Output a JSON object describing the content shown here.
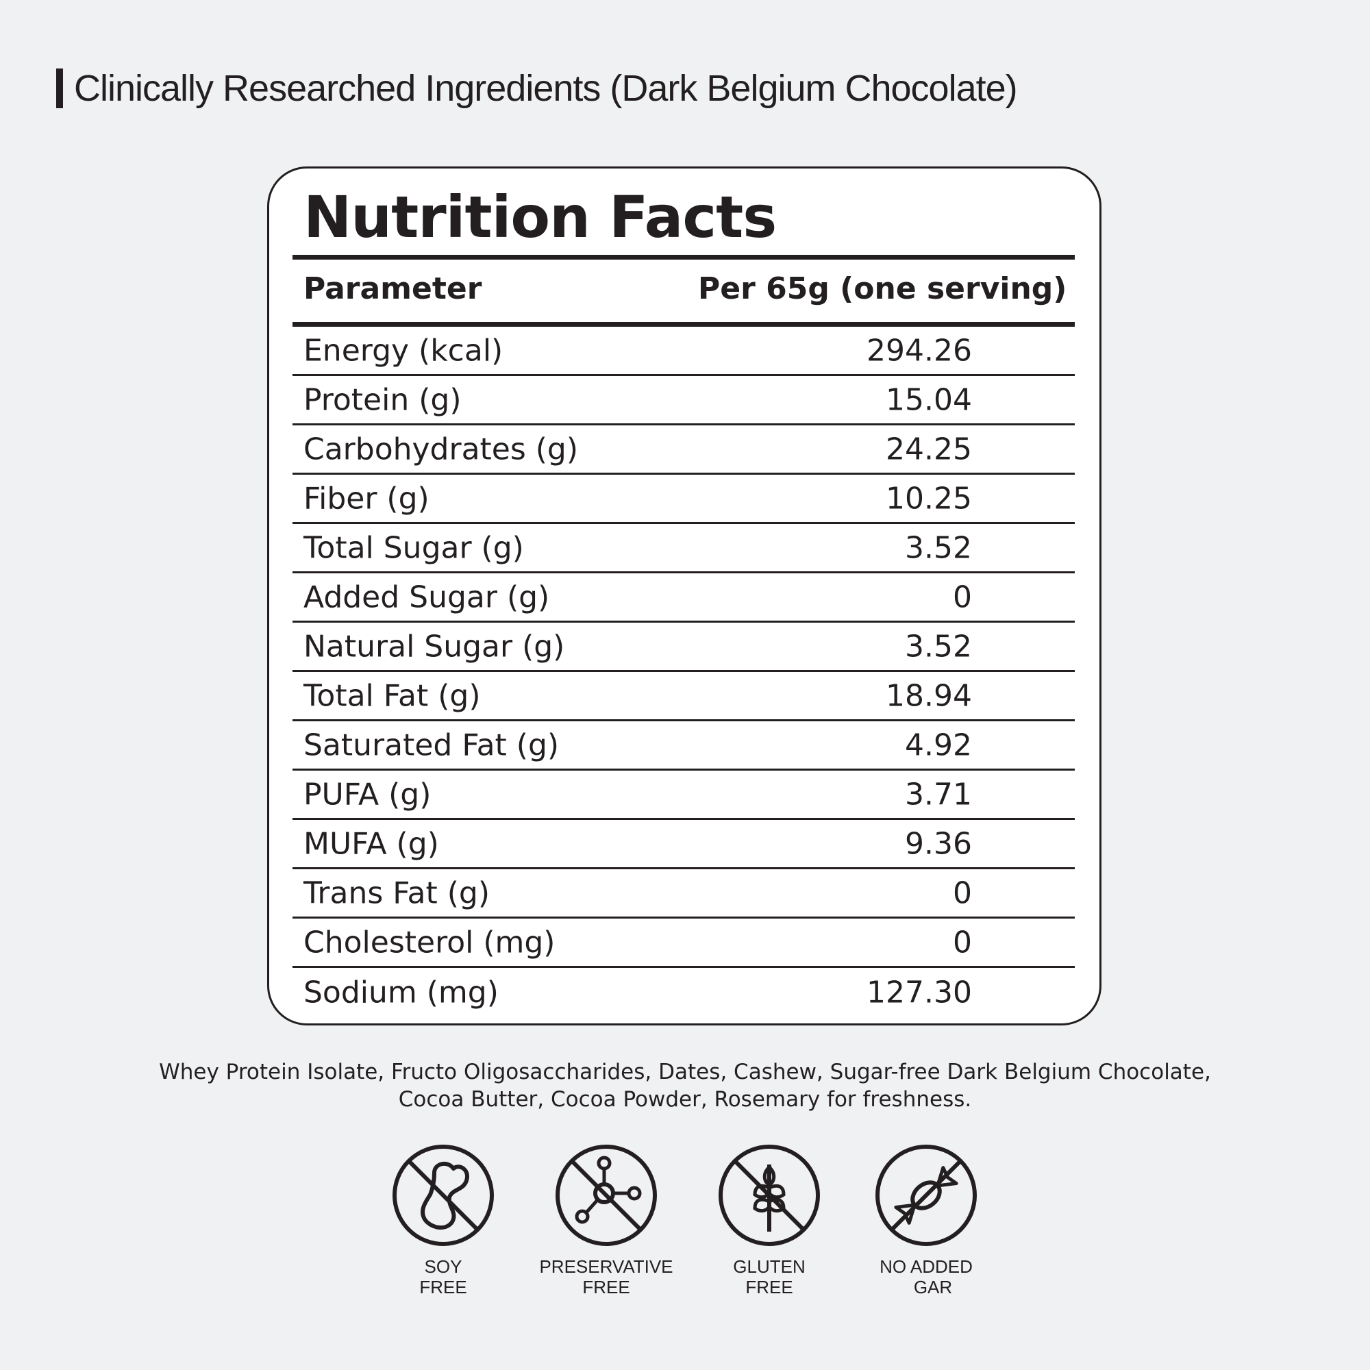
{
  "heading": "Clinically Researched Ingredients (Dark Belgium Chocolate)",
  "card": {
    "title": "Nutrition Facts",
    "col_param": "Parameter",
    "col_value": "Per 65g (one serving)",
    "rows": [
      {
        "param": "Energy (kcal)",
        "value": "294.26"
      },
      {
        "param": "Protein (g)",
        "value": "15.04"
      },
      {
        "param": "Carbohydrates (g)",
        "value": "24.25"
      },
      {
        "param": "Fiber (g)",
        "value": "10.25"
      },
      {
        "param": "Total Sugar (g)",
        "value": "3.52"
      },
      {
        "param": "Added Sugar (g)",
        "value": "0"
      },
      {
        "param": "Natural Sugar (g)",
        "value": "3.52"
      },
      {
        "param": "Total Fat (g)",
        "value": "18.94"
      },
      {
        "param": "Saturated Fat (g)",
        "value": "4.92"
      },
      {
        "param": "PUFA (g)",
        "value": "3.71"
      },
      {
        "param": "MUFA (g)",
        "value": "9.36"
      },
      {
        "param": "Trans Fat (g)",
        "value": "0"
      },
      {
        "param": "Cholesterol (mg)",
        "value": "0"
      },
      {
        "param": "Sodium (mg)",
        "value": "127.30"
      }
    ]
  },
  "ingredients": {
    "line1": "Whey Protein Isolate, Fructo Oligosaccharides, Dates, Cashew, Sugar-free Dark Belgium Chocolate,",
    "line2": "Cocoa Butter, Cocoa Powder, Rosemary for freshness."
  },
  "badges": [
    {
      "icon": "no-peanut-icon",
      "line1": "SOY",
      "line2": "FREE"
    },
    {
      "icon": "no-molecule-icon",
      "line1": "PRESERVATIVE",
      "line2": "FREE"
    },
    {
      "icon": "no-wheat-icon",
      "line1": "GLUTEN",
      "line2": "FREE"
    },
    {
      "icon": "no-candy-icon",
      "line1": "NO ADDED",
      "line2": "GAR"
    }
  ],
  "colors": {
    "background": "#f0f1f3",
    "ink": "#231f20",
    "card": "#ffffff"
  }
}
